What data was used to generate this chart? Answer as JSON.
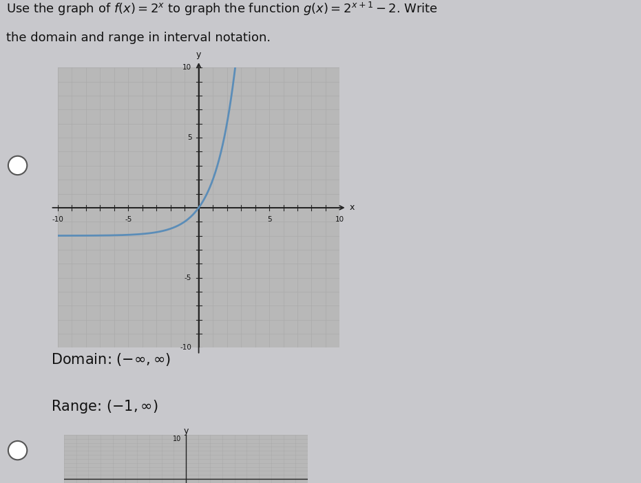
{
  "domain_text": "Domain: $(-\\infty, \\infty)$",
  "range_text": "Range: $(-1, \\infty)$",
  "xlim": [
    -10,
    10
  ],
  "ylim": [
    -10,
    10
  ],
  "xlabel": "x",
  "ylabel": "y",
  "curve_color": "#5b8db8",
  "curve_linewidth": 2.0,
  "grid_color": "#aaaaaa",
  "axis_color": "#222222",
  "text_color": "#111111",
  "page_bg": "#c8c8cc",
  "graph_bg": "#b8b8b8"
}
